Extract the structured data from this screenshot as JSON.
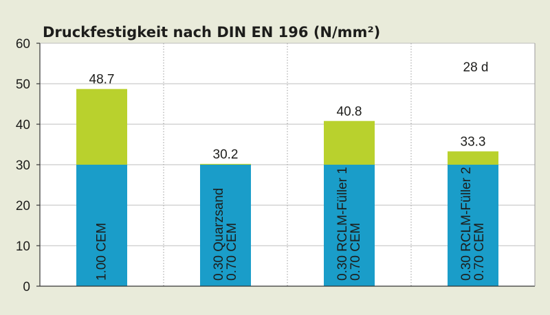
{
  "chart_data": {
    "type": "bar",
    "title": "Druckfestigkeit nach DIN EN 196 (N/mm²)",
    "annotation": "28 d",
    "ylim": [
      0,
      60
    ],
    "yticks": [
      0,
      10,
      20,
      30,
      40,
      50,
      60
    ],
    "grid": true,
    "colors": {
      "base": "#1a9dc9",
      "increment": "#b9d12d",
      "background": "#e9ebda",
      "plot": "#ffffff"
    },
    "categories": [
      {
        "lines": [
          "1.00 CEM"
        ]
      },
      {
        "lines": [
          "0.30 Quarzsand",
          "0.70 CEM"
        ]
      },
      {
        "lines": [
          "0.30 RCLM-Füller 1",
          "0.70 CEM"
        ]
      },
      {
        "lines": [
          "0.30 RCLM-Füller 2",
          "0.70 CEM"
        ]
      }
    ],
    "base_value": 30,
    "values": [
      48.7,
      30.2,
      40.8,
      33.3
    ],
    "value_labels": [
      "48.7",
      "30.2",
      "40.8",
      "33.3"
    ]
  }
}
